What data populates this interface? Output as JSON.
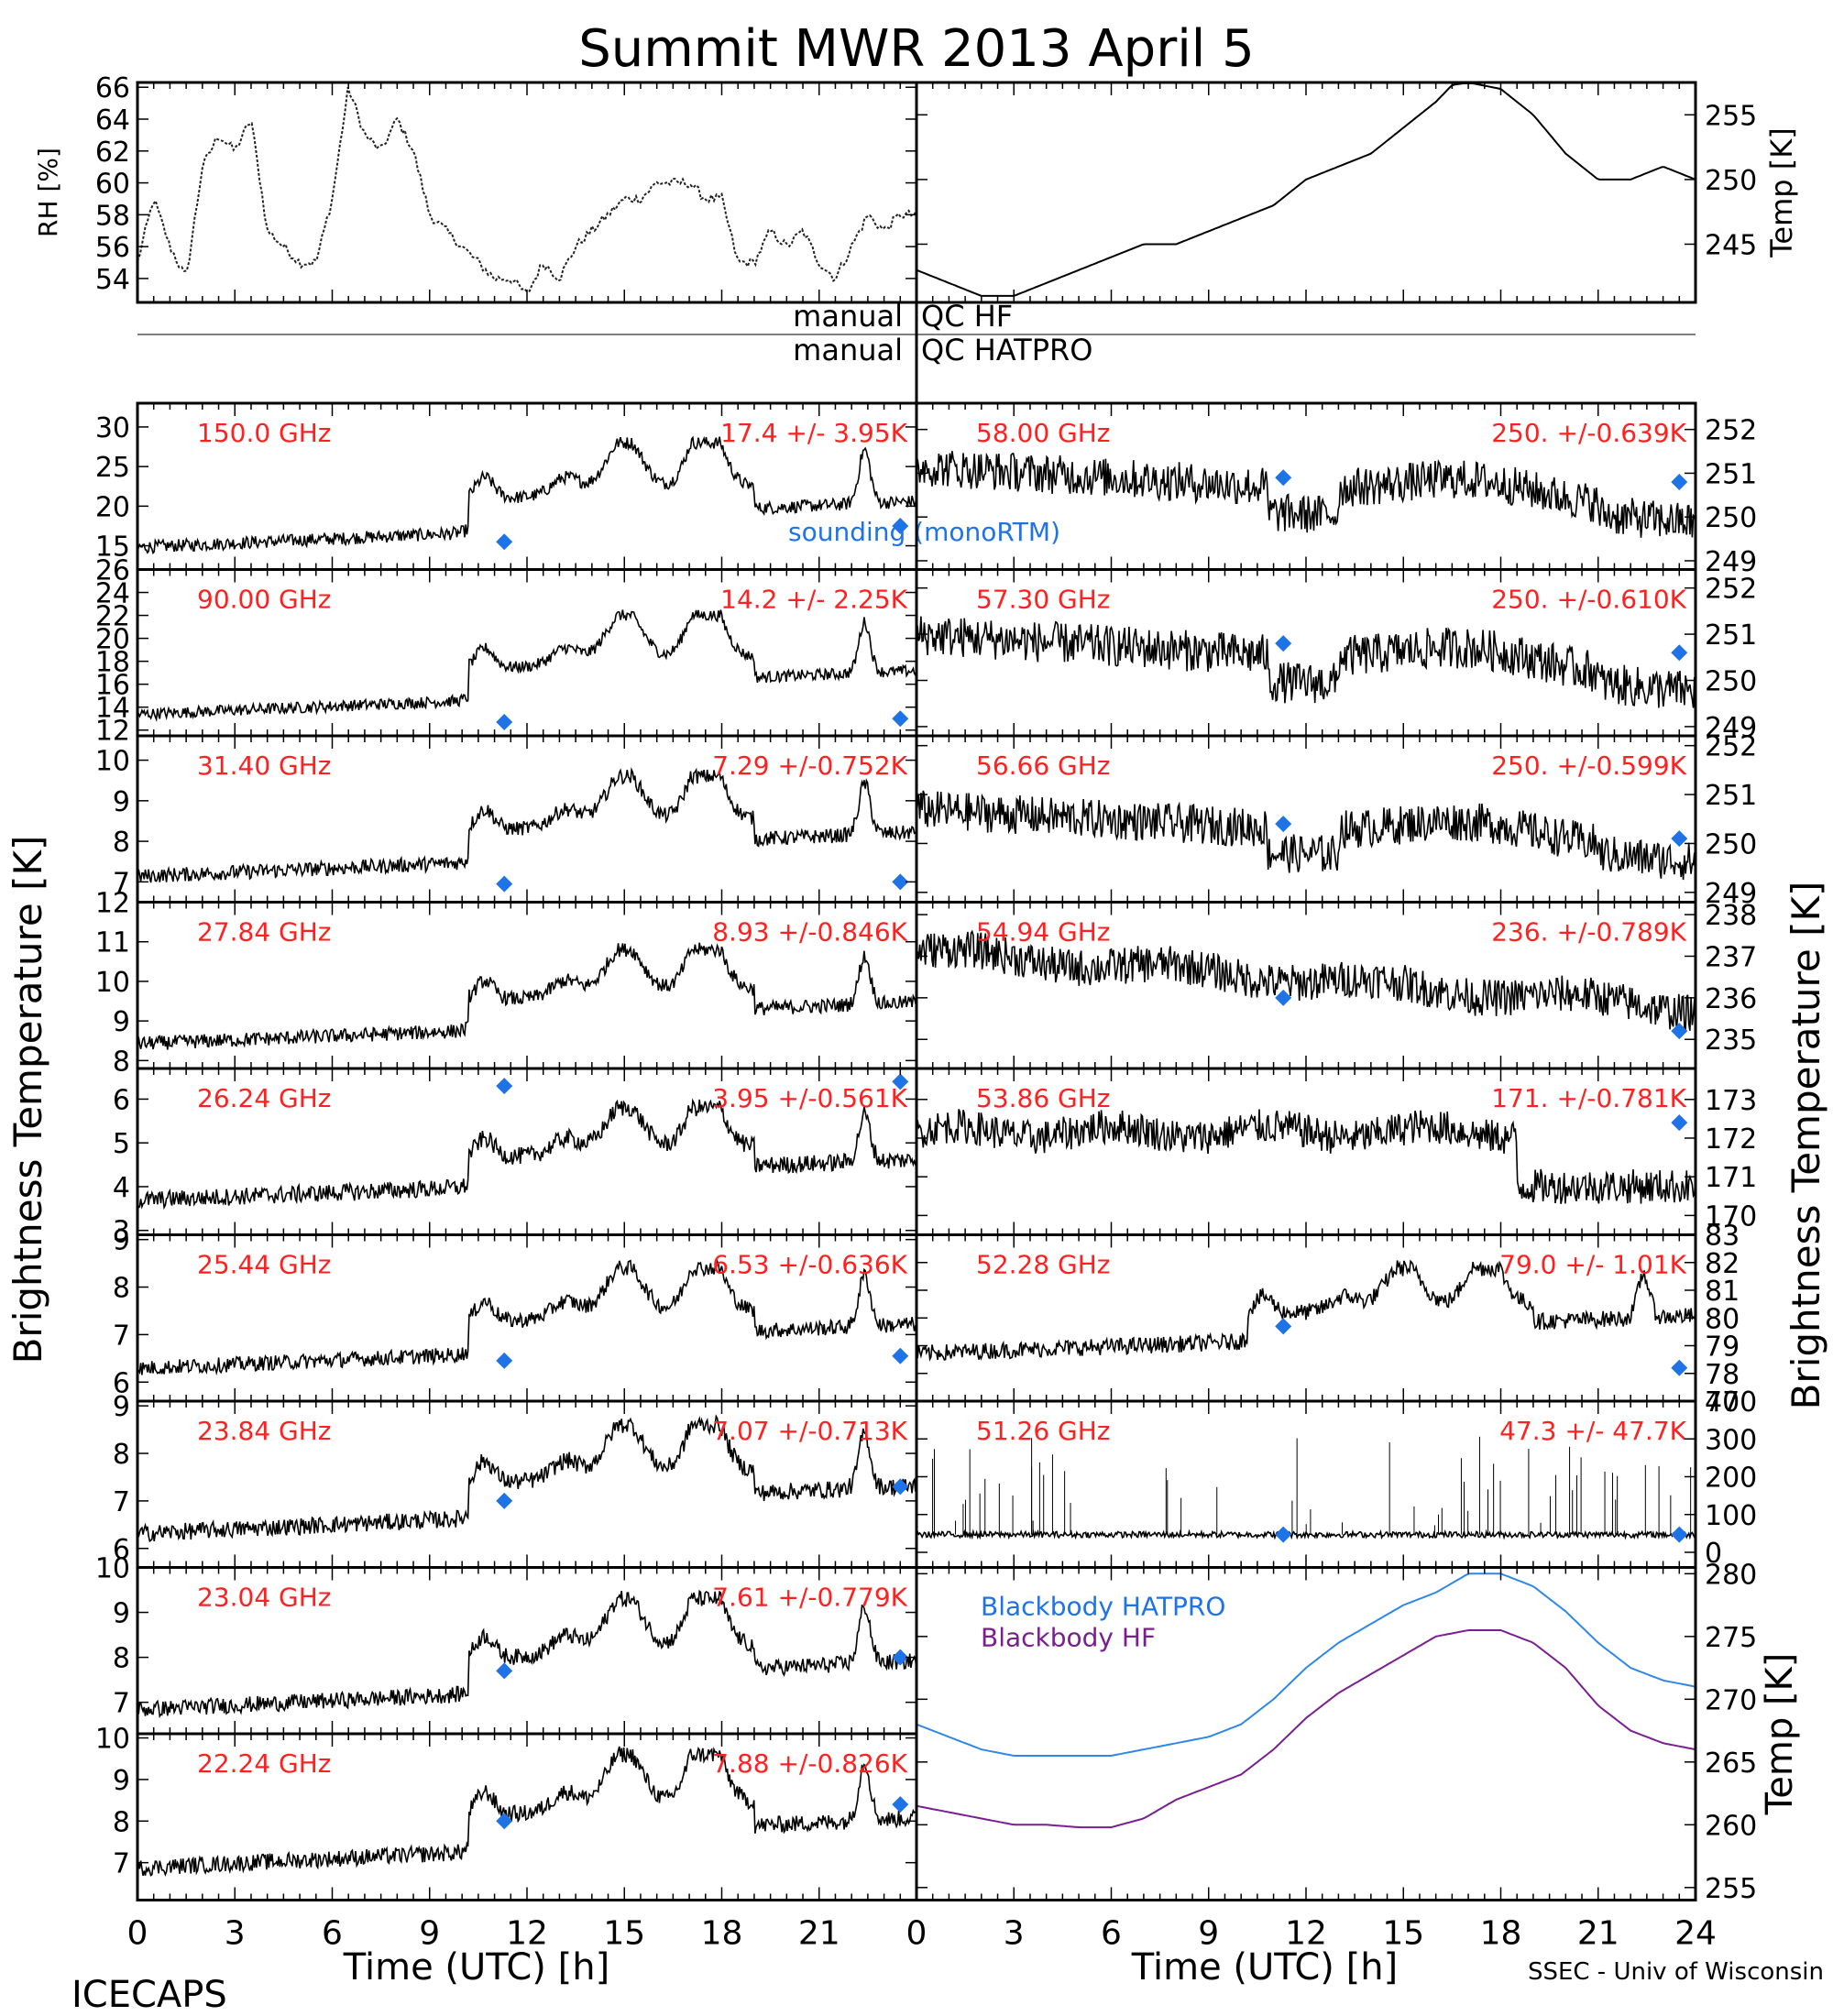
{
  "title": "Summit MWR 2013 April  5",
  "footer_left": "ICECAPS",
  "footer_right": "SSEC - Univ of Wisconsin",
  "x_axis": {
    "label": "Time (UTC) [h]",
    "range": [
      0,
      24
    ],
    "ticks_left": [
      "0",
      "3",
      "6",
      "9",
      "12",
      "15",
      "18",
      "21",
      ""
    ],
    "ticks_right": [
      "0",
      "3",
      "6",
      "9",
      "12",
      "15",
      "18",
      "21",
      "24"
    ],
    "tick_values": [
      0,
      3,
      6,
      9,
      12,
      15,
      18,
      21,
      24
    ]
  },
  "y_axis_left_label": "Brightness Temperature [K]",
  "y_axis_right_label": "Brightness Temperature [K]",
  "qc": {
    "hf_prefix": "manual",
    "hf_label": "QC HF",
    "hatpro_prefix": "manual",
    "hatpro_label": "QC HATPRO"
  },
  "legend_sounding": "sounding (monoRTM)",
  "colors": {
    "trace": "#000000",
    "stat_text": "#ff2020",
    "sounding": "#1e73e6",
    "blackbody_hatpro": "#2f88e8",
    "blackbody_hf": "#7a1f8f"
  },
  "chart_data": [
    {
      "panel": "rh",
      "type": "line",
      "ylabel": "RH [%]",
      "ylim": [
        52.5,
        66.3
      ],
      "yticks": [
        54,
        56,
        58,
        60,
        62,
        64,
        66
      ],
      "series": [
        {
          "x": [
            0,
            0.5,
            1,
            1.5,
            2,
            2.5,
            3,
            3.5,
            4,
            4.5,
            5,
            5.5,
            6,
            6.5,
            7,
            7.5,
            8,
            8.5,
            9,
            9.5,
            10,
            10.5,
            11,
            11.5,
            12,
            12.5,
            13,
            13.5,
            14,
            14.5,
            15,
            15.5,
            16,
            16.5,
            17,
            17.5,
            18,
            18.5,
            19,
            19.5,
            20,
            20.5,
            21,
            21.5,
            22,
            22.5,
            23,
            23.5,
            24
          ],
          "y": [
            55,
            59,
            56,
            54,
            61,
            63,
            62,
            64,
            57,
            56,
            55,
            55,
            59,
            66,
            63,
            62,
            64,
            62,
            58,
            57,
            56,
            55,
            54,
            54,
            53,
            55,
            54,
            56,
            57,
            58,
            59,
            59,
            60,
            60,
            60,
            59,
            59,
            55,
            55,
            57,
            56,
            57,
            55,
            54,
            56,
            58,
            57,
            58,
            58
          ]
        }
      ]
    },
    {
      "panel": "temp",
      "type": "line",
      "ylabel": "Temp [K]",
      "ylim": [
        240.5,
        257.5
      ],
      "yticks": [
        245,
        250,
        255
      ],
      "series": [
        {
          "x": [
            0,
            1,
            2,
            3,
            4,
            5,
            6,
            7,
            8,
            9,
            10,
            11,
            12,
            13,
            14,
            15,
            16,
            16.5,
            17,
            18,
            19,
            20,
            21,
            22,
            23,
            24
          ],
          "y": [
            243,
            242,
            241,
            241,
            242,
            243,
            244,
            245,
            245,
            246,
            247,
            248,
            250,
            251,
            252,
            254,
            256,
            257.3,
            257.5,
            257,
            255,
            252,
            250,
            250,
            251,
            250
          ]
        }
      ]
    },
    {
      "panel": "ch150",
      "type": "scatter",
      "freq": "150.0 GHz",
      "stat": "17.4 +/-  3.95K",
      "ylim": [
        12,
        33
      ],
      "yticks": [
        15,
        20,
        25,
        30
      ],
      "trace_ytop": "26",
      "sounding": [
        {
          "x": 11.3,
          "y": 15.5
        },
        {
          "x": 23.5,
          "y": 17.5
        }
      ],
      "profile": "wv",
      "trace_range": [
        13,
        28
      ],
      "noise": 0.8
    },
    {
      "panel": "ch90",
      "type": "scatter",
      "freq": "90.00 GHz",
      "stat": "14.2 +/-  2.25K",
      "ylim": [
        11.5,
        26
      ],
      "yticks": [
        12,
        14,
        16,
        18,
        20,
        22,
        24,
        26
      ],
      "sounding": [
        {
          "x": 11.3,
          "y": 12.7
        },
        {
          "x": 23.5,
          "y": 13
        }
      ],
      "profile": "wv",
      "trace_range": [
        12.2,
        22
      ],
      "noise": 0.5
    },
    {
      "panel": "ch31",
      "type": "scatter",
      "freq": "31.40 GHz",
      "stat": "7.29 +/-0.752K",
      "ylim": [
        6.5,
        10.6
      ],
      "yticks": [
        7,
        8,
        9,
        10
      ],
      "sounding": [
        {
          "x": 11.3,
          "y": 6.95
        },
        {
          "x": 23.5,
          "y": 7.0
        }
      ],
      "profile": "wv",
      "trace_range": [
        6.8,
        9.6
      ],
      "noise": 0.18
    },
    {
      "panel": "ch27",
      "type": "scatter",
      "freq": "27.84 GHz",
      "stat": "8.93 +/-0.846K",
      "ylim": [
        7.8,
        12
      ],
      "yticks": [
        8,
        9,
        10,
        11,
        12
      ],
      "sounding": [],
      "profile": "wv",
      "trace_range": [
        8.1,
        10.8
      ],
      "noise": 0.18
    },
    {
      "panel": "ch26",
      "type": "scatter",
      "freq": "26.24 GHz",
      "stat": "3.95 +/-0.561K",
      "ylim": [
        2.9,
        6.7
      ],
      "yticks": [
        3,
        4,
        5,
        6
      ],
      "sounding": [
        {
          "x": 11.3,
          "y": 6.3
        },
        {
          "x": 23.5,
          "y": 6.4
        }
      ],
      "profile": "wv",
      "trace_range": [
        3.4,
        5.8
      ],
      "noise": 0.2
    },
    {
      "panel": "ch25",
      "type": "scatter",
      "freq": "25.44 GHz",
      "stat": "6.53 +/-0.636K",
      "ylim": [
        5.6,
        9.1
      ],
      "yticks": [
        6,
        7,
        8,
        9
      ],
      "sounding": [
        {
          "x": 11.3,
          "y": 6.45
        },
        {
          "x": 23.5,
          "y": 6.55
        }
      ],
      "profile": "wv",
      "trace_range": [
        6.0,
        8.4
      ],
      "noise": 0.16
    },
    {
      "panel": "ch23_84",
      "type": "scatter",
      "freq": "23.84 GHz",
      "stat": "7.07 +/-0.713K",
      "ylim": [
        5.6,
        9.1
      ],
      "yticks": [
        6,
        7,
        8,
        9
      ],
      "sounding": [
        {
          "x": 11.3,
          "y": 7.0
        },
        {
          "x": 23.5,
          "y": 7.3
        }
      ],
      "profile": "wv",
      "trace_range": [
        6.0,
        8.6
      ],
      "noise": 0.18
    },
    {
      "panel": "ch23_04",
      "type": "scatter",
      "freq": "23.04 GHz",
      "stat": "7.61 +/-0.779K",
      "ylim": [
        6.3,
        10
      ],
      "yticks": [
        7,
        8,
        9,
        10
      ],
      "sounding": [
        {
          "x": 11.3,
          "y": 7.7
        },
        {
          "x": 23.5,
          "y": 8.0
        }
      ],
      "profile": "wv",
      "trace_range": [
        6.5,
        9.3
      ],
      "noise": 0.18
    },
    {
      "panel": "ch22",
      "type": "scatter",
      "freq": "22.24 GHz",
      "stat": "7.88 +/-0.826K",
      "ylim": [
        6.1,
        10.1
      ],
      "yticks": [
        7,
        8,
        9,
        10
      ],
      "sounding": [
        {
          "x": 11.3,
          "y": 8.0
        },
        {
          "x": 23.5,
          "y": 8.4
        }
      ],
      "profile": "wv",
      "trace_range": [
        6.5,
        9.6
      ],
      "noise": 0.2
    },
    {
      "panel": "ch58",
      "type": "scatter",
      "freq": "58.00 GHz",
      "stat": "250. +/-0.639K",
      "ylim": [
        248.8,
        252.6
      ],
      "yticks": [
        249,
        250,
        251,
        252
      ],
      "sounding": [
        {
          "x": 11.3,
          "y": 250.9
        },
        {
          "x": 23.5,
          "y": 250.8
        }
      ],
      "profile": "o2",
      "trace_range": [
        249.6,
        252.0
      ],
      "noise": 0.45
    },
    {
      "panel": "ch57_30",
      "type": "scatter",
      "freq": "57.30 GHz",
      "stat": "250. +/-0.610K",
      "ylim": [
        248.8,
        252.4
      ],
      "yticks": [
        249,
        250,
        251,
        252
      ],
      "sounding": [
        {
          "x": 11.3,
          "y": 250.8
        },
        {
          "x": 23.5,
          "y": 250.6
        }
      ],
      "profile": "o2",
      "trace_range": [
        249.5,
        251.8
      ],
      "noise": 0.45
    },
    {
      "panel": "ch56_66",
      "type": "scatter",
      "freq": "56.66 GHz",
      "stat": "250. +/-0.599K",
      "ylim": [
        248.8,
        252.2
      ],
      "yticks": [
        249,
        250,
        251,
        252
      ],
      "sounding": [
        {
          "x": 11.3,
          "y": 250.4
        },
        {
          "x": 23.5,
          "y": 250.1
        }
      ],
      "profile": "o2",
      "trace_range": [
        249.4,
        251.4
      ],
      "noise": 0.4
    },
    {
      "panel": "ch54_94",
      "type": "scatter",
      "freq": "54.94 GHz",
      "stat": "236. +/-0.789K",
      "ylim": [
        234.3,
        238.3
      ],
      "yticks": [
        235,
        236,
        237,
        238
      ],
      "sounding": [
        {
          "x": 11.3,
          "y": 236.0
        },
        {
          "x": 23.5,
          "y": 235.2
        }
      ],
      "profile": "o2b",
      "trace_range": [
        235.0,
        237.5
      ],
      "noise": 0.45
    },
    {
      "panel": "ch53_86",
      "type": "scatter",
      "freq": "53.86 GHz",
      "stat": "171. +/-0.781K",
      "ylim": [
        169.5,
        173.8
      ],
      "yticks": [
        170,
        171,
        172,
        173
      ],
      "sounding": [
        {
          "x": 23.5,
          "y": 172.4
        }
      ],
      "profile": "o2c",
      "trace_range": [
        170.0,
        173.0
      ],
      "noise": 0.45
    },
    {
      "panel": "ch52_28",
      "type": "scatter",
      "freq": "52.28 GHz",
      "stat": "79.0 +/- 1.01K",
      "ylim": [
        77,
        83
      ],
      "yticks": [
        77,
        78,
        79,
        80,
        81,
        82,
        83
      ],
      "sounding": [
        {
          "x": 11.3,
          "y": 79.7
        },
        {
          "x": 23.5,
          "y": 78.2
        }
      ],
      "profile": "wv",
      "trace_range": [
        78.3,
        81.8
      ],
      "noise": 0.3
    },
    {
      "panel": "ch51_26",
      "type": "scatter",
      "freq": "51.26 GHz",
      "stat": "47.3 +/- 47.7K",
      "ylim": [
        -40,
        400
      ],
      "yticks": [
        0,
        100,
        200,
        300,
        400
      ],
      "sounding": [
        {
          "x": 11.3,
          "y": 47
        },
        {
          "x": 23.5,
          "y": 47
        }
      ],
      "profile": "flat",
      "trace_range": [
        47,
        47
      ],
      "noise": 8
    },
    {
      "panel": "blackbody",
      "type": "line",
      "ylabel": "Temp [K]",
      "ylim": [
        254,
        280.5
      ],
      "yticks": [
        255,
        260,
        265,
        270,
        275,
        280
      ],
      "series": [
        {
          "name": "Blackbody HATPRO",
          "x": [
            0,
            1,
            2,
            3,
            4,
            5,
            6,
            7,
            8,
            9,
            10,
            11,
            12,
            13,
            14,
            15,
            16,
            17,
            18,
            19,
            20,
            21,
            22,
            23,
            24
          ],
          "y": [
            268,
            267,
            266,
            265.5,
            265.5,
            265.5,
            265.5,
            266,
            266.5,
            267,
            268,
            270,
            272.5,
            274.5,
            276,
            277.5,
            278.5,
            280,
            280,
            279,
            277,
            274.5,
            272.5,
            271.5,
            271
          ]
        },
        {
          "name": "Blackbody HF",
          "x": [
            0,
            1,
            2,
            3,
            4,
            5,
            6,
            7,
            8,
            9,
            10,
            11,
            12,
            13,
            14,
            15,
            16,
            17,
            18,
            19,
            20,
            21,
            22,
            23,
            24
          ],
          "y": [
            261.5,
            261,
            260.5,
            260,
            260,
            259.8,
            259.8,
            260.5,
            262,
            263,
            264,
            266,
            268.5,
            270.5,
            272,
            273.5,
            275,
            275.5,
            275.5,
            274.5,
            272.5,
            269.5,
            267.5,
            266.5,
            266
          ]
        }
      ]
    }
  ]
}
